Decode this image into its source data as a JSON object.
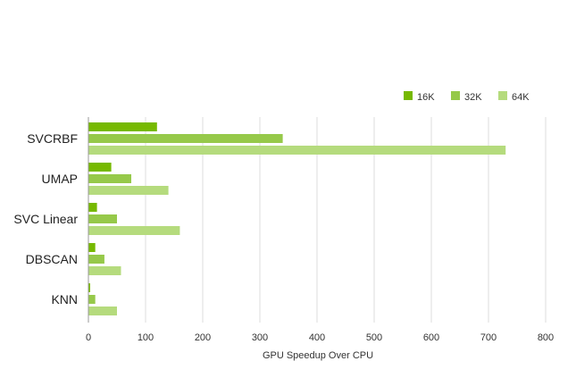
{
  "chart_data": {
    "type": "bar",
    "orientation": "horizontal",
    "title": "",
    "xlabel": "GPU Speedup Over CPU",
    "ylabel": "",
    "xlim": [
      0,
      800
    ],
    "xticks": [
      0,
      100,
      200,
      300,
      400,
      500,
      600,
      700,
      800
    ],
    "grid": "vertical",
    "legend_position": "top-right",
    "categories": [
      "SVCRBF",
      "UMAP",
      "SVC Linear",
      "DBSCAN",
      "KNN"
    ],
    "series": [
      {
        "name": "16K",
        "color": "#76b900",
        "values": [
          120,
          40,
          15,
          12,
          3
        ]
      },
      {
        "name": "32K",
        "color": "#96c94a",
        "values": [
          340,
          75,
          50,
          28,
          12
        ]
      },
      {
        "name": "64K",
        "color": "#b5db7d",
        "values": [
          730,
          140,
          160,
          57,
          50
        ]
      }
    ]
  }
}
